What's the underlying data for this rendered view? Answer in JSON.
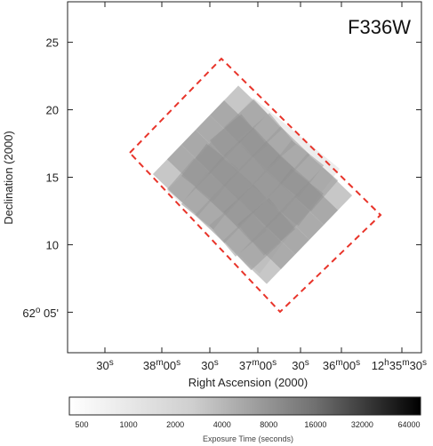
{
  "chart_data": {
    "type": "heatmap",
    "title": "F336W",
    "xlabel": "Right Ascension (2000)",
    "ylabel": "Declination (2000)",
    "ylim_arcmin": [
      2,
      28
    ],
    "yticks_arcmin": [
      10,
      15,
      20,
      25
    ],
    "y_origin_label": {
      "deg": "62",
      "deg_mark": "o",
      "rest": " 05'",
      "at_arcmin": 5
    },
    "xticks": [
      {
        "pre": "",
        "unit_pos": "",
        "m": "",
        "s": "30",
        "label_mid": ""
      },
      {
        "pre": "38",
        "unit_pos": "m",
        "m": "00",
        "s": "s"
      },
      {
        "pre": "",
        "unit_pos": "",
        "m": "",
        "s": "30"
      },
      {
        "pre": "37",
        "unit_pos": "m",
        "m": "00",
        "s": "s"
      },
      {
        "pre": "",
        "unit_pos": "",
        "m": "",
        "s": "30"
      },
      {
        "pre": "36",
        "unit_pos": "m",
        "m": "00",
        "s": "s"
      },
      {
        "pre": "12",
        "h": "h",
        "mm": "35",
        "unit_pos": "m",
        "m": "30",
        "s": "s"
      }
    ],
    "footprint_outline": {
      "style": "dashed",
      "color": "#e8342a"
    },
    "colorbar": {
      "label": "Exposure Time (seconds)",
      "ticks": [
        "500",
        "1000",
        "2000",
        "4000",
        "8000",
        "16000",
        "32000",
        "64000"
      ],
      "scale": "log",
      "cmap": [
        "#ffffff",
        "#000000"
      ]
    }
  }
}
